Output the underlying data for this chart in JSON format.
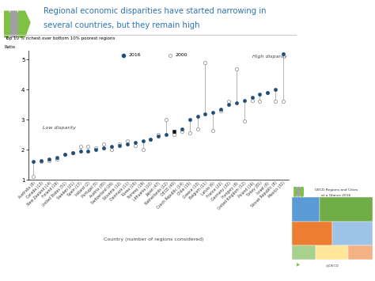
{
  "title_line1": "Regional economic disparities have started narrowing in",
  "title_line2": "several countries, but they remain high",
  "ylabel_top": "Top 10 % richest over bottom 10% poorest regions",
  "ylabel_bottom": "Ratio",
  "xlabel": "Country (number of regions considered)",
  "ylim": [
    1,
    5.3
  ],
  "yticks": [
    1,
    2,
    3,
    4,
    5
  ],
  "low_disparity_label": "Low disparity",
  "high_disparity_label": "High disparity",
  "title_color": "#2E75B6",
  "dot_2016_color": "#1F4E79",
  "background_color": "#FFFFFF",
  "countries": [
    "Australia (8)",
    "Canada (13)",
    "New Zealand (14)",
    "Finland (19)",
    "United States (51)",
    "Sweden (21)",
    "Spain (17)",
    "Ireland (2)",
    "Portugal (5)",
    "Austria (35)",
    "Switzerland (26)",
    "Slovenia (12)",
    "Denmark (11)",
    "Korea (16)",
    "Norway (19)",
    "Lithuania (10)",
    "Japan (47)",
    "Netherlands (12)",
    "OECD (40)",
    "Czech Republic (14)",
    "Chile (15)",
    "Greece (13)",
    "Belgium (11)",
    "Latvia (6)",
    "France (22)",
    "Germany (32)",
    "Hungary (8)",
    "United Kingdom (12)",
    "Poland (16)",
    "Turkey (81)",
    "Israel (6)",
    "Slovak Republic (8)",
    "Mexico (32)"
  ],
  "values_2016": [
    1.6,
    1.65,
    1.7,
    1.75,
    1.85,
    1.9,
    1.95,
    1.95,
    2.0,
    2.05,
    2.1,
    2.15,
    2.2,
    2.25,
    2.3,
    2.35,
    2.45,
    2.5,
    2.6,
    2.7,
    3.0,
    3.1,
    3.2,
    3.25,
    3.35,
    3.5,
    3.55,
    3.65,
    3.75,
    3.85,
    3.9,
    4.0,
    5.2
  ],
  "values_2000": [
    1.1,
    1.6,
    1.65,
    1.7,
    1.85,
    1.9,
    2.1,
    2.1,
    2.05,
    2.2,
    2.0,
    2.2,
    2.3,
    2.15,
    2.0,
    2.35,
    2.5,
    3.0,
    2.5,
    2.6,
    2.55,
    2.7,
    4.9,
    2.65,
    3.3,
    3.6,
    4.7,
    2.95,
    3.65,
    3.6,
    3.9,
    3.6,
    3.6
  ],
  "oecd_index": 18,
  "line_color": "#AAAAAA",
  "chevron_colors": [
    "#7DC242",
    "#9B9B9B",
    "#7DC242"
  ],
  "book_colors": [
    "#4CAF50",
    "#2196F3",
    "#FF9800",
    "#9C27B0",
    "#F44336",
    "#00BCD4",
    "#FFEB3B",
    "#E91E63",
    "#8BC34A",
    "#3F51B5",
    "#FF5722",
    "#009688"
  ]
}
